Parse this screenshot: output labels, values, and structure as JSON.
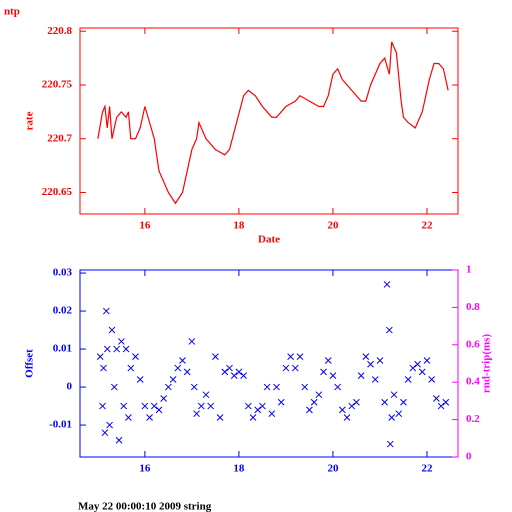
{
  "chart_data": [
    {
      "type": "line",
      "title": "ntp",
      "xlabel": "Date",
      "ylabel": "rate",
      "axis_color": "#ff0000",
      "xlim": [
        14.62,
        22.66
      ],
      "xticks": [
        16,
        18,
        20,
        22
      ],
      "ylim": [
        220.63,
        220.803
      ],
      "yticks": [
        220.65,
        220.7,
        220.75,
        220.8
      ],
      "series": [
        {
          "color": "#ff0000",
          "x": [
            15.0,
            15.1,
            15.15,
            15.2,
            15.25,
            15.3,
            15.4,
            15.5,
            15.6,
            15.65,
            15.7,
            15.8,
            15.9,
            16.0,
            16.1,
            16.2,
            16.3,
            16.5,
            16.65,
            16.8,
            16.9,
            17.0,
            17.1,
            17.15,
            17.3,
            17.5,
            17.7,
            17.8,
            17.95,
            18.1,
            18.2,
            18.35,
            18.5,
            18.7,
            18.8,
            19.0,
            19.2,
            19.3,
            19.5,
            19.7,
            19.8,
            19.9,
            20.0,
            20.1,
            20.2,
            20.4,
            20.6,
            20.7,
            20.8,
            21.0,
            21.1,
            21.2,
            21.25,
            21.35,
            21.45,
            21.5,
            21.6,
            21.75,
            21.9,
            22.05,
            22.15,
            22.25,
            22.35,
            22.45
          ],
          "values": [
            220.7,
            220.725,
            220.73,
            220.71,
            220.73,
            220.7,
            220.72,
            220.725,
            220.72,
            220.725,
            220.7,
            220.7,
            220.71,
            220.73,
            220.715,
            220.7,
            220.67,
            220.65,
            220.64,
            220.65,
            220.67,
            220.69,
            220.7,
            220.715,
            220.7,
            220.69,
            220.685,
            220.69,
            220.715,
            220.74,
            220.745,
            220.74,
            220.73,
            220.72,
            220.72,
            220.73,
            220.735,
            220.74,
            220.735,
            220.73,
            220.73,
            220.74,
            220.76,
            220.765,
            220.755,
            220.745,
            220.735,
            220.735,
            220.75,
            220.77,
            220.775,
            220.76,
            220.79,
            220.78,
            220.735,
            220.72,
            220.715,
            220.71,
            220.725,
            220.755,
            220.77,
            220.77,
            220.765,
            220.745
          ]
        }
      ]
    },
    {
      "type": "scatter",
      "ylabel": "Offset",
      "y2label": "rnd-trip(ms)",
      "axis_color": "#0000ff",
      "y2_color": "#ff00ff",
      "xlim": [
        14.62,
        22.66
      ],
      "xticks": [
        16,
        18,
        20,
        22
      ],
      "ylim": [
        -0.0184,
        0.0308
      ],
      "yticks": [
        -0.01,
        0,
        0.01,
        0.02,
        0.03
      ],
      "y2lim": [
        0,
        1
      ],
      "y2ticks": [
        0,
        0.2,
        0.4,
        0.6,
        0.8,
        1
      ],
      "series": [
        {
          "color": "#0000ff",
          "x": [
            15.05,
            15.1,
            15.12,
            15.15,
            15.18,
            15.2,
            15.25,
            15.3,
            15.35,
            15.4,
            15.45,
            15.5,
            15.55,
            15.6,
            15.65,
            15.7,
            15.8,
            15.9,
            16.0,
            16.1,
            16.2,
            16.3,
            16.4,
            16.5,
            16.6,
            16.7,
            16.8,
            16.9,
            17.0,
            17.05,
            17.1,
            17.2,
            17.3,
            17.4,
            17.5,
            17.6,
            17.7,
            17.8,
            17.9,
            18.0,
            18.1,
            18.2,
            18.3,
            18.4,
            18.5,
            18.6,
            18.7,
            18.8,
            18.9,
            19.0,
            19.1,
            19.2,
            19.3,
            19.4,
            19.5,
            19.6,
            19.7,
            19.8,
            19.9,
            20.0,
            20.1,
            20.2,
            20.3,
            20.4,
            20.5,
            20.6,
            20.7,
            20.8,
            20.9,
            21.0,
            21.1,
            21.15,
            21.2,
            21.22,
            21.25,
            21.3,
            21.4,
            21.5,
            21.6,
            21.7,
            21.8,
            21.9,
            22.0,
            22.1,
            22.2,
            22.3,
            22.4
          ],
          "values": [
            0.008,
            -0.005,
            0.005,
            -0.012,
            0.02,
            0.01,
            -0.01,
            0.015,
            0.0,
            0.01,
            -0.014,
            0.012,
            -0.005,
            0.01,
            -0.008,
            0.005,
            0.008,
            0.002,
            -0.005,
            -0.008,
            -0.005,
            -0.006,
            -0.003,
            0.0,
            0.002,
            0.005,
            0.007,
            0.004,
            0.012,
            0.0,
            -0.007,
            -0.005,
            -0.002,
            -0.005,
            0.008,
            -0.008,
            0.004,
            0.005,
            0.003,
            0.004,
            0.003,
            -0.005,
            -0.008,
            -0.006,
            -0.005,
            0.0,
            -0.007,
            0.0,
            -0.004,
            0.005,
            0.008,
            0.005,
            0.008,
            0.0,
            -0.006,
            -0.004,
            -0.002,
            0.004,
            0.007,
            0.003,
            0.0,
            -0.006,
            -0.008,
            -0.005,
            -0.004,
            0.003,
            0.008,
            0.006,
            0.002,
            0.007,
            -0.004,
            0.027,
            0.015,
            -0.015,
            -0.008,
            -0.002,
            -0.007,
            -0.004,
            0.002,
            0.005,
            0.006,
            0.004,
            0.007,
            0.002,
            -0.003,
            -0.005,
            -0.004
          ]
        }
      ]
    }
  ],
  "footer": "May 22 00:00:10 2009 string"
}
